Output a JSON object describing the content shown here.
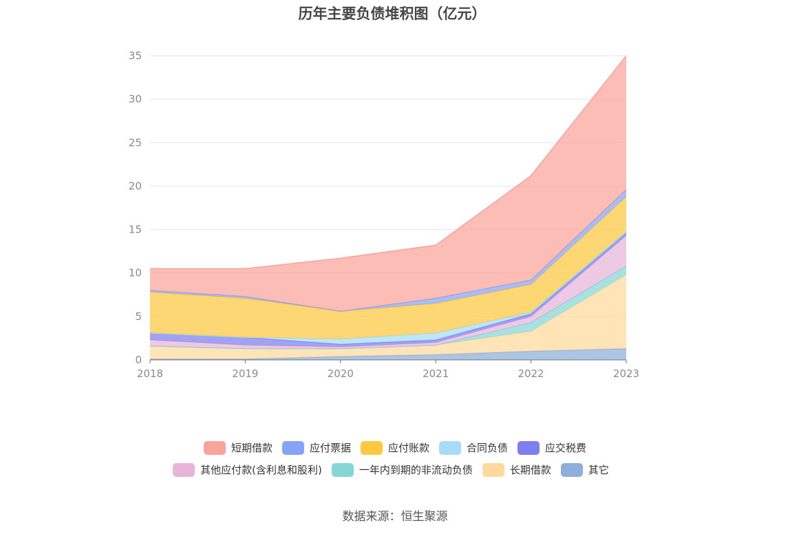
{
  "title": "历年主要负债堆积图（亿元）",
  "source": "数据来源：恒生聚源",
  "chart_data": {
    "type": "area",
    "stacked": true,
    "title": "历年主要负债堆积图（亿元）",
    "categories": [
      "2018",
      "2019",
      "2020",
      "2021",
      "2022",
      "2023"
    ],
    "ylim": [
      0,
      35
    ],
    "yticks": [
      0,
      5,
      10,
      15,
      20,
      25,
      30,
      35
    ],
    "grid": true,
    "legend_position": "bottom",
    "series": [
      {
        "name": "其它",
        "color": "#8eaedb",
        "values": [
          0.1,
          0.1,
          0.4,
          0.6,
          1.0,
          1.3
        ]
      },
      {
        "name": "长期借款",
        "color": "#fdd99b",
        "values": [
          1.5,
          1.2,
          0.9,
          1.1,
          2.3,
          8.5
        ]
      },
      {
        "name": "一年内到期的非流动负债",
        "color": "#86d6d5",
        "values": [
          0.0,
          0.0,
          0.0,
          0.0,
          1.0,
          1.0
        ]
      },
      {
        "name": "其他应付款(含利息和股利)",
        "color": "#e8b4d8",
        "values": [
          0.7,
          0.4,
          0.2,
          0.3,
          0.7,
          3.5
        ]
      },
      {
        "name": "应交税费",
        "color": "#7e7ef0",
        "values": [
          0.8,
          0.9,
          0.3,
          0.3,
          0.3,
          0.3
        ]
      },
      {
        "name": "合同负债",
        "color": "#a6dcf5",
        "values": [
          0.0,
          0.0,
          0.6,
          0.8,
          0.2,
          0.2
        ]
      },
      {
        "name": "应付账款",
        "color": "#fec840",
        "values": [
          4.7,
          4.5,
          3.2,
          3.4,
          3.2,
          4.0
        ]
      },
      {
        "name": "应付票据",
        "color": "#87a3f6",
        "values": [
          0.2,
          0.2,
          0.0,
          0.6,
          0.5,
          0.8
        ]
      },
      {
        "name": "短期借款",
        "color": "#f9a49a",
        "values": [
          2.5,
          3.2,
          6.1,
          6.1,
          12.0,
          15.4
        ]
      }
    ]
  },
  "legend": {
    "row1": [
      {
        "name": "短期借款",
        "color": "#f9a49a"
      },
      {
        "name": "应付票据",
        "color": "#87a3f6"
      },
      {
        "name": "应付账款",
        "color": "#fec840"
      },
      {
        "name": "合同负债",
        "color": "#a6dcf5"
      },
      {
        "name": "应交税费",
        "color": "#7e7ef0"
      }
    ],
    "row2": [
      {
        "name": "其他应付款(含利息和股利)",
        "color": "#e8b4d8"
      },
      {
        "name": "一年内到期的非流动负债",
        "color": "#86d6d5"
      },
      {
        "name": "长期借款",
        "color": "#fdd99b"
      },
      {
        "name": "其它",
        "color": "#8eaedb"
      }
    ]
  }
}
